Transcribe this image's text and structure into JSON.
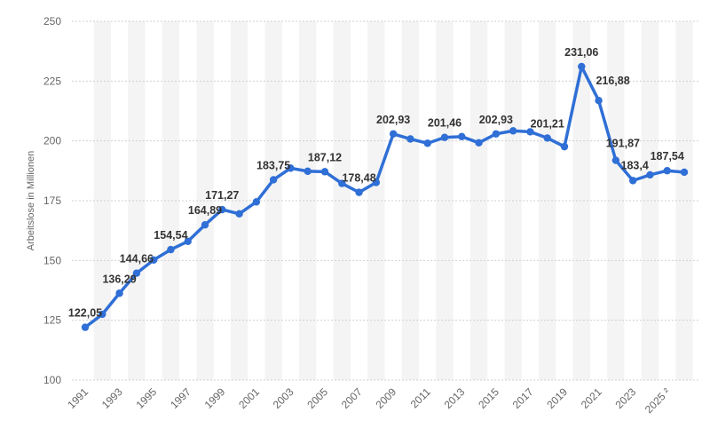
{
  "chart_data": {
    "type": "line",
    "ylabel": "Arbeitslose in Millionen",
    "ylim": [
      100,
      250
    ],
    "yticks": [
      100,
      125,
      150,
      175,
      200,
      225,
      250
    ],
    "grid": true,
    "x": [
      "1991",
      "1992",
      "1993",
      "1994",
      "1995",
      "1996",
      "1997",
      "1998",
      "1999",
      "2000",
      "2001",
      "2002",
      "2003",
      "2004",
      "2005",
      "2006",
      "2007",
      "2008",
      "2009",
      "2010",
      "2011",
      "2012",
      "2013",
      "2014",
      "2015",
      "2016",
      "2017",
      "2018",
      "2019",
      "2020",
      "2021",
      "2022",
      "2023",
      "2024",
      "2025",
      "2026"
    ],
    "xtick_labels": [
      "1991",
      "",
      "1993",
      "",
      "1995",
      "",
      "1997",
      "",
      "1999",
      "",
      "2001",
      "",
      "2003",
      "",
      "2005",
      "",
      "2007",
      "",
      "2009",
      "",
      "2011",
      "",
      "2013",
      "",
      "2015",
      "",
      "2017",
      "",
      "2019",
      "",
      "2021",
      "",
      "2023",
      "",
      "2025 ²",
      ""
    ],
    "series": [
      {
        "color": "#2f6fd6",
        "values": [
          122.05,
          127.5,
          136.29,
          144.66,
          150.2,
          154.54,
          158.0,
          164.89,
          171.27,
          169.5,
          174.5,
          183.75,
          188.6,
          187.3,
          187.12,
          182.2,
          178.48,
          182.6,
          202.93,
          200.8,
          199.0,
          201.46,
          201.8,
          199.2,
          202.93,
          204.2,
          203.8,
          201.21,
          197.6,
          231.06,
          216.88,
          191.87,
          183.4,
          185.8,
          187.54,
          186.9
        ],
        "labels": [
          "122,05",
          "",
          "136,29",
          "144,66",
          "",
          "154,54",
          "",
          "164,89",
          "171,27",
          "",
          "",
          "183,75",
          "",
          "",
          "187,12",
          "",
          "178,48",
          "",
          "202,93",
          "",
          "",
          "201,46",
          "",
          "",
          "202,93",
          "",
          "",
          "201,21",
          "",
          "231,06",
          "216,88",
          "191,87",
          "183,4",
          "",
          "187,54",
          ""
        ]
      }
    ]
  }
}
